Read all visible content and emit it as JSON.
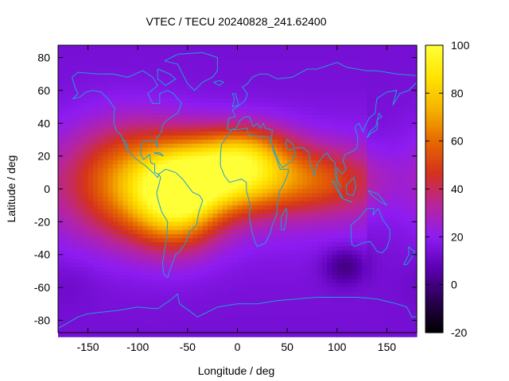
{
  "chart_data": {
    "type": "heatmap",
    "title": "VTEC / TECU 20240828_241.62400",
    "xlabel": "Longitude / deg",
    "ylabel": "Latitude / deg",
    "xlim": [
      -180,
      180
    ],
    "ylim": [
      -87.5,
      87.5
    ],
    "xticks": [
      -150,
      -100,
      -50,
      0,
      50,
      100,
      150
    ],
    "yticks": [
      -80,
      -60,
      -40,
      -20,
      0,
      20,
      40,
      60,
      80
    ],
    "colorbar": {
      "range": [
        -20,
        100
      ],
      "ticks": [
        -20,
        0,
        20,
        40,
        60,
        80,
        100
      ],
      "palette": [
        "#000000",
        "#2a0050",
        "#5a00b0",
        "#8e1cf2",
        "#b8259a",
        "#d4321c",
        "#e66a00",
        "#f6b300",
        "#ffe400",
        "#ffff38"
      ]
    },
    "background_level": 14,
    "features": [
      {
        "name": "equatorial-anomaly-peak-atlantic",
        "lon": -5,
        "lat": 10,
        "amplitude": 90
      },
      {
        "name": "equatorial-anomaly-south-america",
        "lon": -60,
        "lat": -5,
        "amplitude": 88
      },
      {
        "name": "equatorial-band-west",
        "lon": -110,
        "lat": 5,
        "amplitude": 58
      },
      {
        "name": "equatorial-band-east",
        "lon": 80,
        "lat": 5,
        "amplitude": 48
      },
      {
        "name": "north-band-africa",
        "lon": 10,
        "lat": 25,
        "amplitude": 48
      },
      {
        "name": "southern-low",
        "lon": 108,
        "lat": -47,
        "amplitude": -16
      },
      {
        "name": "southern-pacific-low",
        "lon": -170,
        "lat": -58,
        "amplitude": -3
      }
    ],
    "overlay": "coastlines",
    "coastline_color": "#1e9fd8"
  }
}
